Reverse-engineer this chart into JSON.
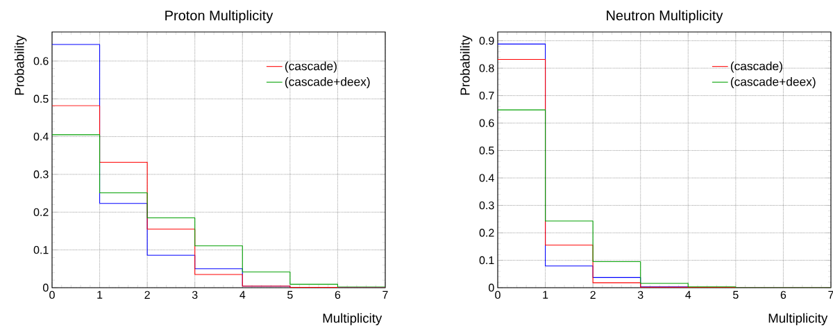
{
  "chart_data": [
    {
      "type": "histogram",
      "title": "Proton Multiplicity",
      "xlabel": "Multiplicity",
      "ylabel": "Probability",
      "bins": [
        0,
        1,
        2,
        3,
        4,
        5,
        6,
        7
      ],
      "xlim": [
        0,
        7
      ],
      "ylim": [
        0,
        0.677
      ],
      "xticks": [
        0,
        1,
        2,
        3,
        4,
        5,
        6,
        7
      ],
      "yticks": [
        0,
        0.1,
        0.2,
        0.3,
        0.4,
        0.5,
        0.6
      ],
      "grid": true,
      "legend": "top right",
      "series": [
        {
          "color": "#0000ff",
          "values": [
            0.644,
            0.223,
            0.086,
            0.05,
            0.004,
            0.001,
            0
          ]
        },
        {
          "name": "(cascade)",
          "color": "#ff0000",
          "values": [
            0.482,
            0.332,
            0.155,
            0.035,
            0.004,
            0.001,
            0
          ]
        },
        {
          "name": "(cascade+deex)",
          "color": "#00a000",
          "values": [
            0.405,
            0.251,
            0.185,
            0.111,
            0.042,
            0.009,
            0.002
          ]
        }
      ]
    },
    {
      "type": "histogram",
      "title": "Neutron Multiplicity",
      "xlabel": "Multiplicity",
      "ylabel": "Probability",
      "bins": [
        0,
        1,
        2,
        3,
        4,
        5,
        6,
        7
      ],
      "xlim": [
        0,
        7
      ],
      "ylim": [
        0,
        0.932
      ],
      "xticks": [
        0,
        1,
        2,
        3,
        4,
        5,
        6,
        7
      ],
      "yticks": [
        0,
        0.1,
        0.2,
        0.3,
        0.4,
        0.5,
        0.6,
        0.7,
        0.8,
        0.9
      ],
      "grid": true,
      "legend": "top right",
      "series": [
        {
          "color": "#0000ff",
          "values": [
            0.888,
            0.079,
            0.037,
            0.003,
            0.001,
            0,
            0
          ]
        },
        {
          "name": "(cascade)",
          "color": "#ff0000",
          "values": [
            0.832,
            0.155,
            0.018,
            0.002,
            0.001,
            0,
            0
          ]
        },
        {
          "name": "(cascade+deex)",
          "color": "#00a000",
          "values": [
            0.648,
            0.243,
            0.095,
            0.016,
            0.003,
            0,
            0
          ]
        }
      ]
    }
  ]
}
